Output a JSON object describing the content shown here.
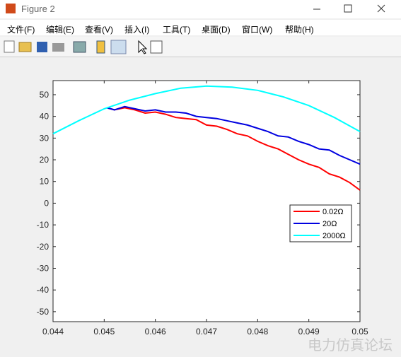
{
  "window": {
    "title": "Figure 2"
  },
  "menu": [
    "文件(F)",
    "编辑(E)",
    "查看(V)",
    "插入(I)",
    "工具(T)",
    "桌面(D)",
    "窗口(W)",
    "帮助(H)"
  ],
  "watermark": "电力仿真论坛",
  "chart_data": {
    "type": "line",
    "xlim": [
      0.044,
      0.05
    ],
    "xticks": [
      0.044,
      0.045,
      0.046,
      0.047,
      0.048,
      0.049,
      0.05
    ],
    "ylim": [
      -54.6,
      56.5
    ],
    "yticks": [
      -50,
      -40,
      -30,
      -20,
      -10,
      0,
      10,
      20,
      30,
      40,
      50
    ],
    "legend": "right",
    "series": [
      {
        "name": "0.02Ω",
        "color": "#ff0000",
        "x": [
          0.04505,
          0.0452,
          0.0454,
          0.0456,
          0.0458,
          0.046,
          0.0462,
          0.0464,
          0.0466,
          0.0468,
          0.047,
          0.0472,
          0.0474,
          0.0476,
          0.0478,
          0.048,
          0.0482,
          0.0484,
          0.0486,
          0.0488,
          0.049,
          0.0492,
          0.0494,
          0.0496,
          0.0498,
          0.05
        ],
        "values": [
          44,
          43,
          44,
          43,
          41.5,
          42,
          41,
          39.5,
          39,
          38.5,
          36,
          35.5,
          34,
          32,
          31,
          28.5,
          26.5,
          25,
          22.5,
          20,
          18,
          16.5,
          13.5,
          12,
          9.5,
          6
        ]
      },
      {
        "name": "20Ω",
        "color": "#0000e0",
        "x": [
          0.04505,
          0.0452,
          0.0454,
          0.0456,
          0.0458,
          0.046,
          0.0462,
          0.0464,
          0.0466,
          0.0468,
          0.047,
          0.0472,
          0.0474,
          0.0476,
          0.0478,
          0.048,
          0.0482,
          0.0484,
          0.0486,
          0.0488,
          0.049,
          0.0492,
          0.0494,
          0.0496,
          0.0498,
          0.05
        ],
        "values": [
          44,
          43,
          44.5,
          43.5,
          42.5,
          43,
          42,
          42,
          41.5,
          40,
          39.5,
          39,
          38,
          37,
          36,
          34.5,
          33,
          31,
          30.5,
          28.5,
          27,
          25,
          24.5,
          22,
          20,
          18
        ]
      },
      {
        "name": "2000Ω",
        "color": "#00ffff",
        "x": [
          0.044,
          0.0445,
          0.045,
          0.0455,
          0.046,
          0.0465,
          0.047,
          0.0475,
          0.048,
          0.0485,
          0.049,
          0.0495,
          0.05
        ],
        "values": [
          32,
          38,
          43.5,
          47.5,
          50.5,
          53,
          54,
          53.5,
          52,
          49,
          45,
          39.5,
          33
        ]
      }
    ]
  }
}
